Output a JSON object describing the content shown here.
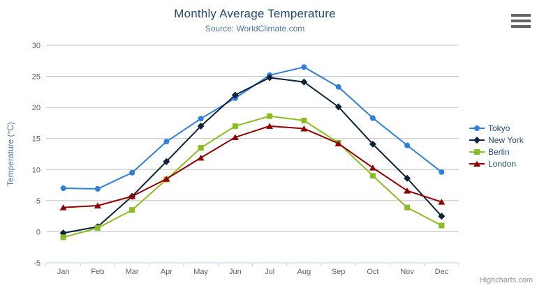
{
  "header": {
    "title": "Monthly Average Temperature",
    "subtitle": "Source: WorldClimate.com"
  },
  "credits": "Highcharts.com",
  "icons": {
    "context_menu": "hamburger-icon"
  },
  "colors": {
    "title": "#274b6d",
    "subtitle": "#4d759e",
    "axis_title": "#4d759e",
    "axis_labels": "#606060",
    "gridline": "#c0c0c0",
    "x_axis_line": "#c0d0e0",
    "credits": "#909090"
  },
  "chart_data": {
    "type": "line",
    "title": "Monthly Average Temperature",
    "subtitle": "Source: WorldClimate.com",
    "xlabel": "",
    "ylabel": "Temperature (°C)",
    "categories": [
      "Jan",
      "Feb",
      "Mar",
      "Apr",
      "May",
      "Jun",
      "Jul",
      "Aug",
      "Sep",
      "Oct",
      "Nov",
      "Dec"
    ],
    "ylim": [
      -5,
      30
    ],
    "y_ticks": [
      -5,
      0,
      5,
      10,
      15,
      20,
      25,
      30
    ],
    "grid": true,
    "legend_position": "right",
    "series": [
      {
        "name": "Tokyo",
        "color": "#2f7ed8",
        "marker": "circle",
        "values": [
          7.0,
          6.9,
          9.5,
          14.5,
          18.2,
          21.5,
          25.2,
          26.5,
          23.3,
          18.3,
          13.9,
          9.6
        ]
      },
      {
        "name": "New York",
        "color": "#0d233a",
        "marker": "diamond",
        "values": [
          -0.2,
          0.8,
          5.7,
          11.3,
          17.0,
          22.0,
          24.8,
          24.1,
          20.1,
          14.1,
          8.6,
          2.5
        ]
      },
      {
        "name": "Berlin",
        "color": "#8bbc21",
        "marker": "square",
        "values": [
          -0.9,
          0.6,
          3.5,
          8.4,
          13.5,
          17.0,
          18.6,
          17.9,
          14.3,
          9.0,
          3.9,
          1.0
        ]
      },
      {
        "name": "London",
        "color": "#910000",
        "marker": "triangle",
        "values": [
          3.9,
          4.2,
          5.7,
          8.5,
          11.9,
          15.2,
          17.0,
          16.6,
          14.2,
          10.3,
          6.6,
          4.8
        ]
      }
    ]
  }
}
